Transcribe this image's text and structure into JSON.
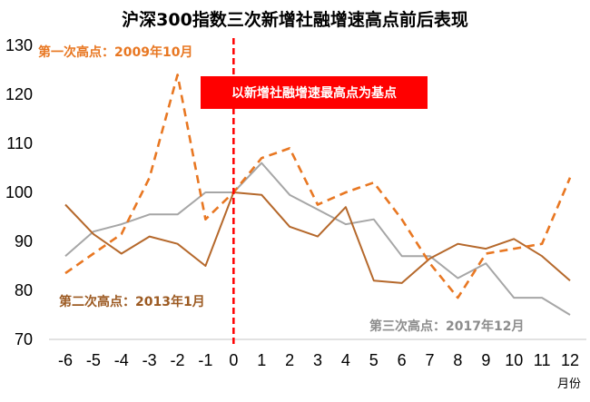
{
  "chart_data": {
    "type": "line",
    "title": "沪深300指数三次新增社融增速高点前后表现",
    "xlabel": "月份",
    "ylabel": "",
    "x": [
      -6,
      -5,
      -4,
      -3,
      -2,
      -1,
      0,
      1,
      2,
      3,
      4,
      5,
      6,
      7,
      8,
      9,
      10,
      11,
      12
    ],
    "ylim": [
      70,
      130
    ],
    "yticks": [
      70,
      80,
      90,
      100,
      110,
      120,
      130
    ],
    "grid": false,
    "series": [
      {
        "name": "第一次高点：2009年10月",
        "color": "#E87722",
        "dash": true,
        "values": [
          83.5,
          87.5,
          91.5,
          103,
          124,
          94.5,
          100,
          107,
          109,
          97.5,
          100,
          102,
          94.5,
          85.5,
          78.5,
          87.5,
          88.5,
          89.5,
          103
        ]
      },
      {
        "name": "第二次高点：2013年1月",
        "color": "#B5682B",
        "dash": false,
        "values": [
          97.5,
          91.5,
          87.5,
          91,
          89.5,
          85,
          100,
          99.5,
          93,
          91,
          97,
          82,
          81.5,
          86.5,
          89.5,
          88.5,
          90.5,
          87,
          82
        ]
      },
      {
        "name": "第三次高点：2017年12月",
        "color": "#A6A6A6",
        "dash": false,
        "values": [
          87,
          92,
          93.5,
          95.5,
          95.5,
          100,
          100,
          106,
          99.5,
          96.5,
          93.5,
          94.5,
          87,
          87,
          82.5,
          85.5,
          78.5,
          78.5,
          75
        ]
      }
    ],
    "annotations": {
      "first_peak": "第一次高点：2009年10月",
      "second_peak": "第二次高点：2013年1月",
      "third_peak": "第三次高点：2017年12月",
      "banner": "以新增社融增速最高点为基点"
    },
    "colors": {
      "banner_bg": "#FF0000",
      "reference_line": "#FF0000",
      "axis": "#D9D9D9"
    }
  }
}
